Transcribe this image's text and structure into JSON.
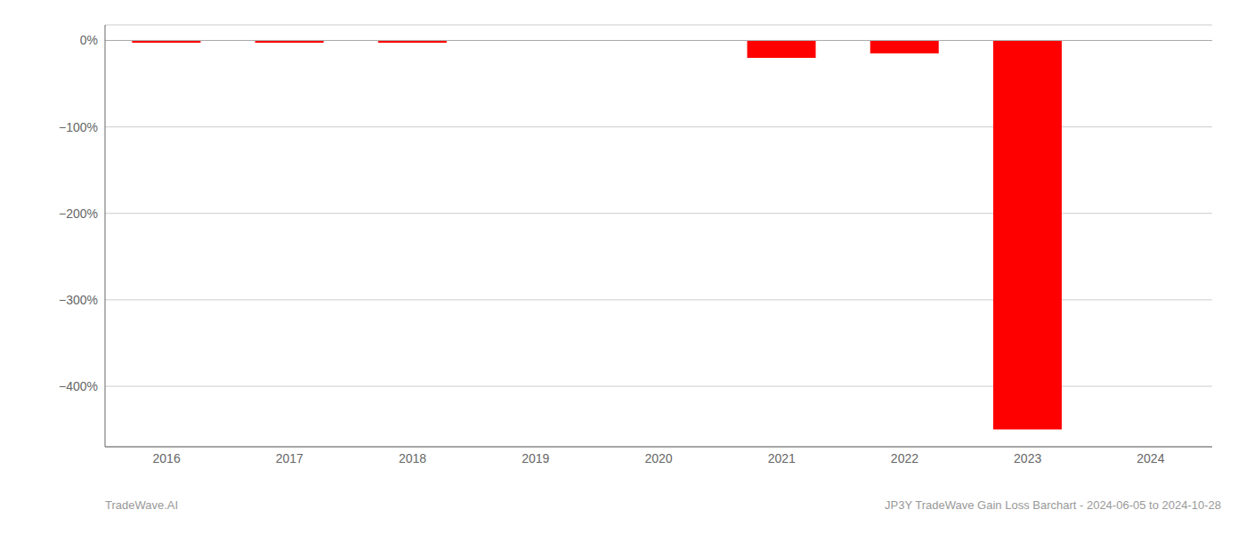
{
  "chart_data": {
    "type": "bar",
    "categories": [
      "2016",
      "2017",
      "2018",
      "2019",
      "2020",
      "2021",
      "2022",
      "2023",
      "2024"
    ],
    "values": [
      -2.5,
      -2.5,
      -2.5,
      -0.5,
      -0.5,
      -20.0,
      -15.0,
      -450.0,
      0.0
    ],
    "color": "#ff0000",
    "ylim": [
      -470,
      18
    ],
    "yticks": [
      {
        "value": 0,
        "label": "0%"
      },
      {
        "value": -100,
        "label": "−100%"
      },
      {
        "value": -200,
        "label": "−200%"
      },
      {
        "value": -300,
        "label": "−300%"
      },
      {
        "value": -400,
        "label": "−400%"
      }
    ],
    "grid": true,
    "annotations": [
      "TradeWave.AI",
      "JP3Y TradeWave Gain Loss Barchart - 2024-06-05 to 2024-10-28"
    ]
  }
}
